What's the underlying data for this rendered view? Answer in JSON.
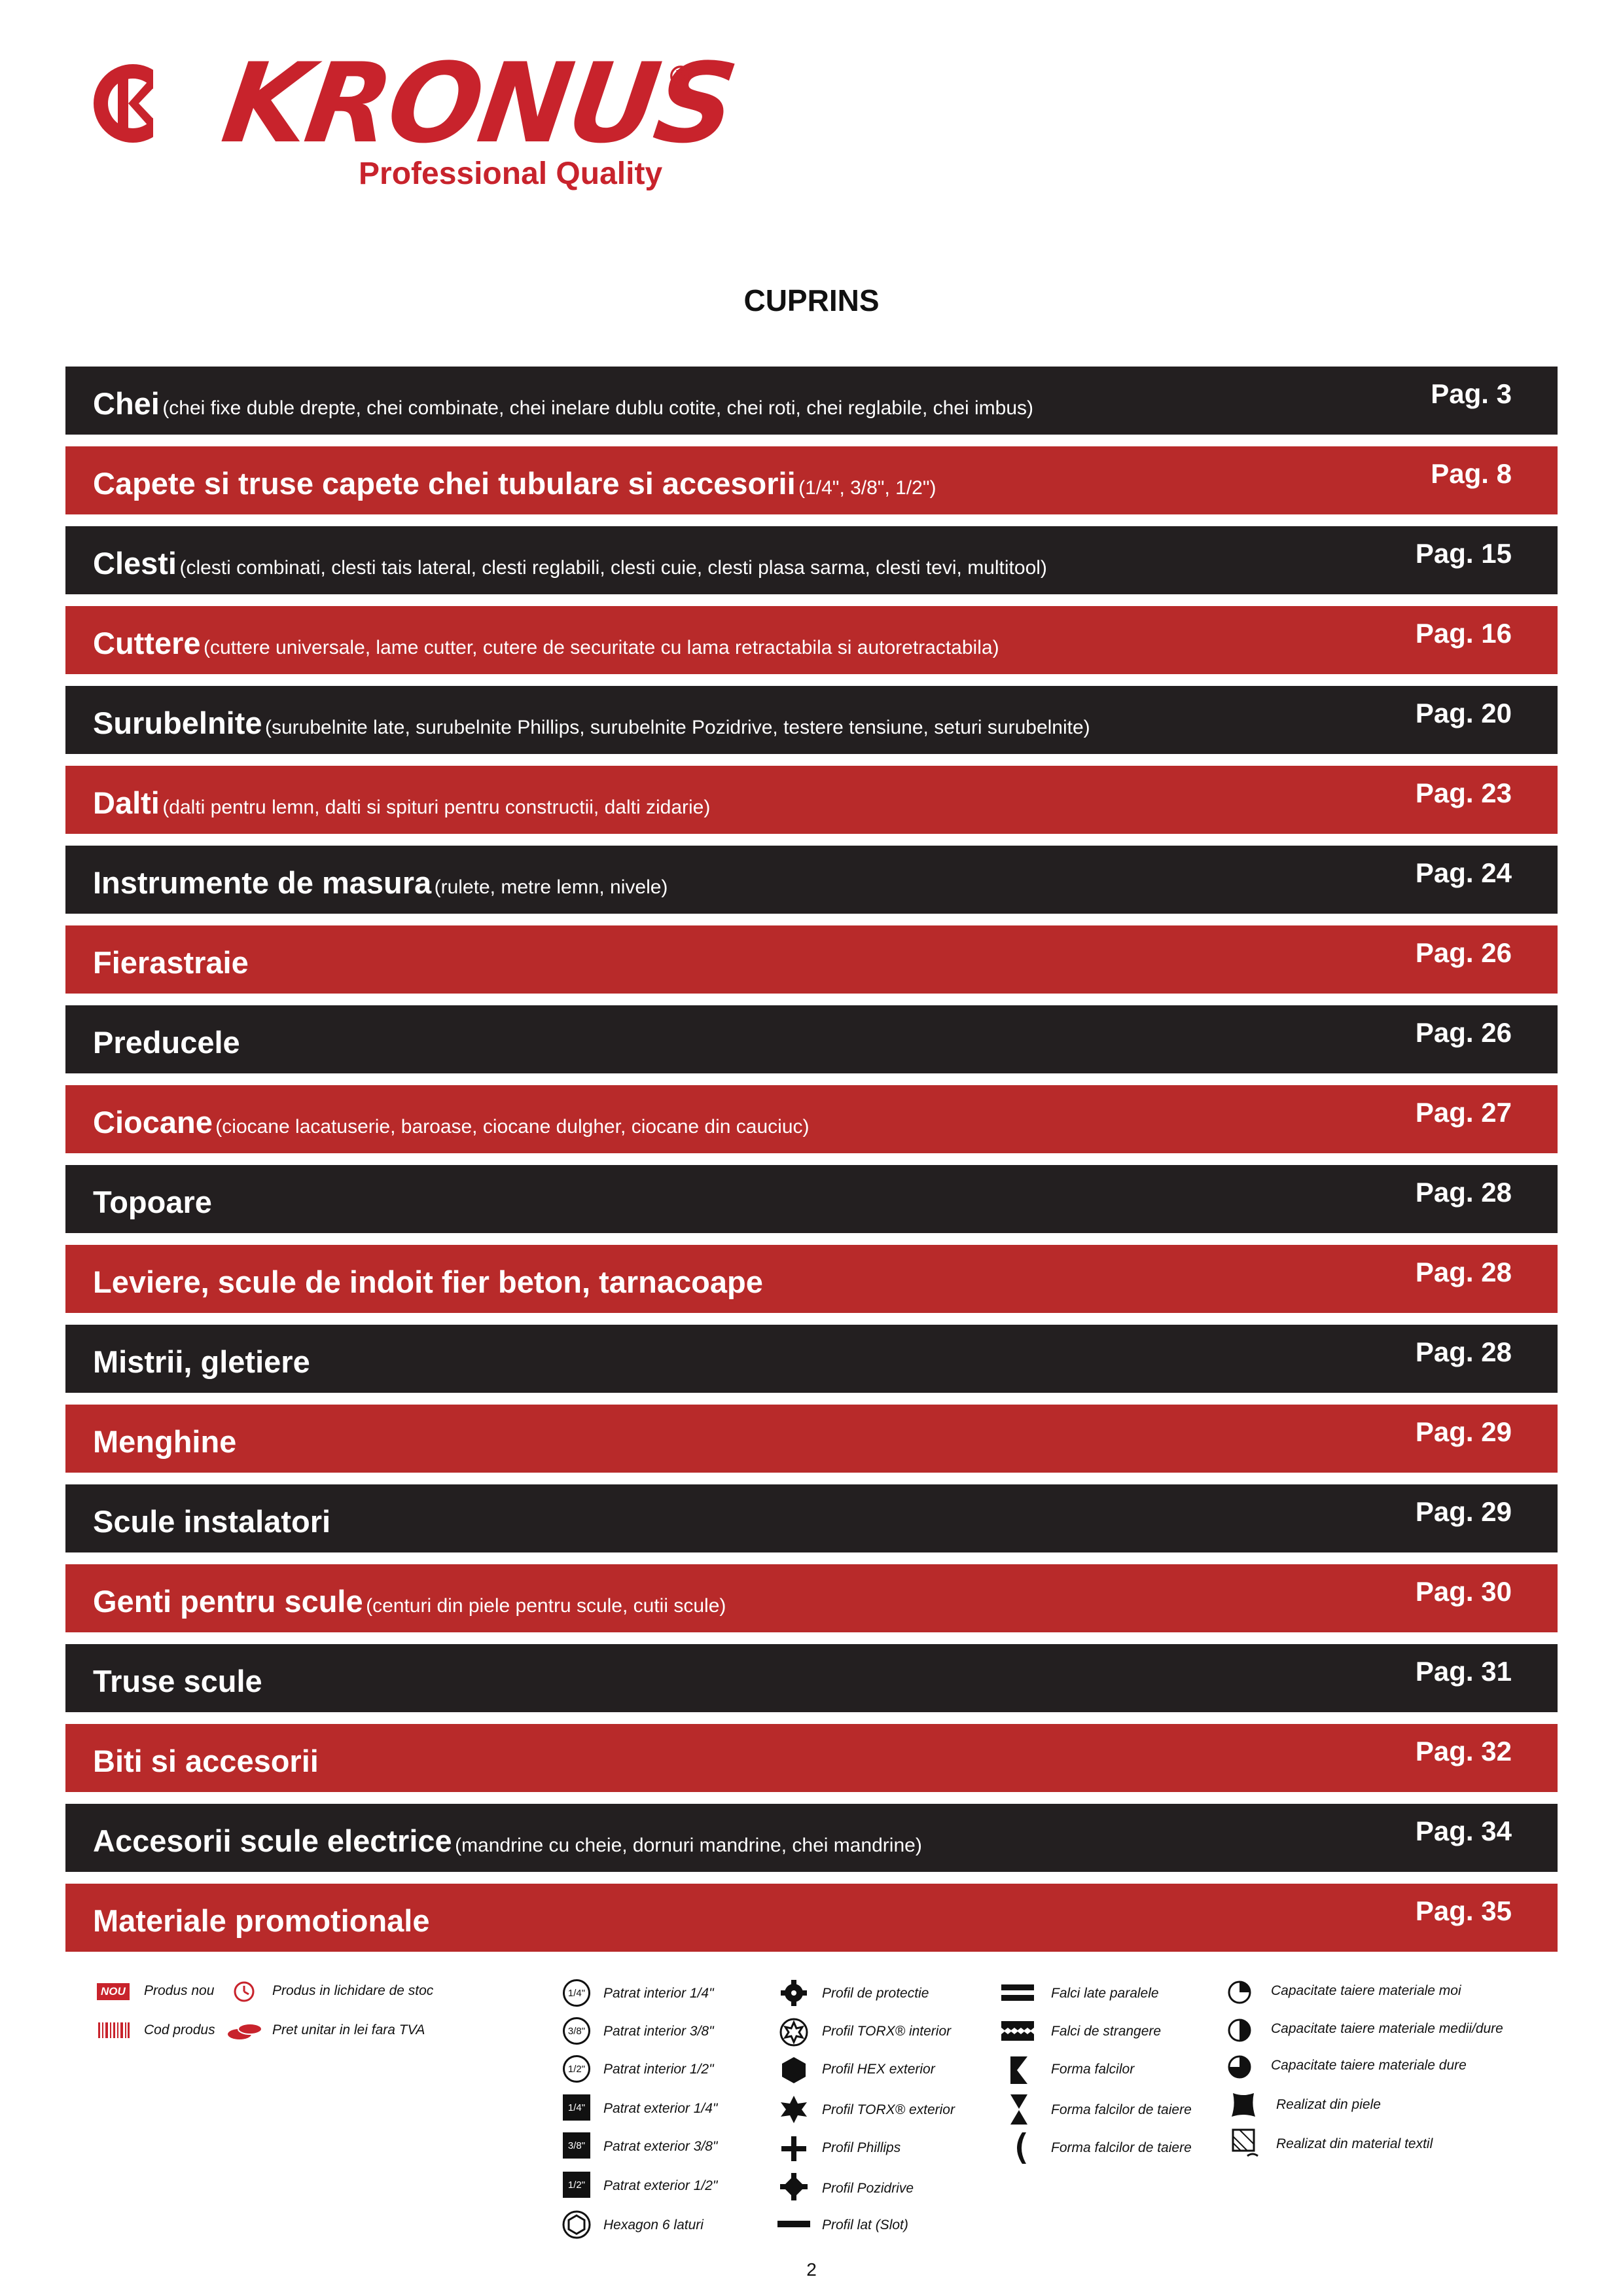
{
  "brand": {
    "name": "KRONUS",
    "registered": "®",
    "tagline": "Professional Quality",
    "color": "#c8232c"
  },
  "title": "CUPRINS",
  "toc": [
    {
      "main": "Chei",
      "sub": "(chei fixe duble drepte, chei combinate, chei inelare dublu cotite, chei roti, chei reglabile, chei imbus)",
      "page": "Pag. 3",
      "style": "dark"
    },
    {
      "main": "Capete si truse capete chei tubulare si accesorii",
      "sub": "(1/4\", 3/8\", 1/2\")",
      "page": "Pag. 8",
      "style": "red"
    },
    {
      "main": "Clesti",
      "sub": "(clesti combinati, clesti tais lateral, clesti reglabili, clesti cuie, clesti plasa sarma, clesti tevi, multitool)",
      "page": "Pag. 15",
      "style": "dark"
    },
    {
      "main": "Cuttere",
      "sub": "(cuttere universale, lame cutter, cutere de securitate cu lama retractabila si autoretractabila)",
      "page": "Pag. 16",
      "style": "red"
    },
    {
      "main": "Surubelnite",
      "sub": "(surubelnite late, surubelnite Phillips, surubelnite Pozidrive, testere tensiune, seturi surubelnite)",
      "page": "Pag. 20",
      "style": "dark"
    },
    {
      "main": "Dalti",
      "sub": "(dalti pentru lemn, dalti si spituri pentru constructii, dalti zidarie)",
      "page": "Pag. 23",
      "style": "red"
    },
    {
      "main": "Instrumente de masura",
      "sub": "(rulete, metre lemn, nivele)",
      "page": "Pag. 24",
      "style": "dark"
    },
    {
      "main": "Fierastraie",
      "sub": "",
      "page": "Pag. 26",
      "style": "red"
    },
    {
      "main": "Preducele",
      "sub": "",
      "page": "Pag. 26",
      "style": "dark"
    },
    {
      "main": "Ciocane",
      "sub": "(ciocane lacatuserie, baroase, ciocane dulgher, ciocane din cauciuc)",
      "page": "Pag. 27",
      "style": "red"
    },
    {
      "main": "Topoare",
      "sub": "",
      "page": "Pag. 28",
      "style": "dark"
    },
    {
      "main": "Leviere, scule de indoit fier beton, tarnacoape",
      "sub": "",
      "page": "Pag. 28",
      "style": "red"
    },
    {
      "main": "Mistrii, gletiere",
      "sub": "",
      "page": "Pag. 28",
      "style": "dark"
    },
    {
      "main": "Menghine",
      "sub": "",
      "page": "Pag. 29",
      "style": "red"
    },
    {
      "main": "Scule instalatori",
      "sub": "",
      "page": "Pag. 29",
      "style": "dark"
    },
    {
      "main": "Genti pentru scule",
      "sub": "(centuri din piele pentru scule, cutii scule)",
      "page": "Pag. 30",
      "style": "red"
    },
    {
      "main": "Truse scule",
      "sub": "",
      "page": "Pag. 31",
      "style": "dark"
    },
    {
      "main": "Biti si accesorii",
      "sub": "",
      "page": "Pag. 32",
      "style": "red"
    },
    {
      "main": "Accesorii scule electrice",
      "sub": "(mandrine cu cheie, dornuri mandrine, chei mandrine)",
      "page": "Pag. 34",
      "style": "dark"
    },
    {
      "main": "Materiale promotionale",
      "sub": "",
      "page": "Pag. 35",
      "style": "red"
    }
  ],
  "legend": {
    "nou_badge": "NOU",
    "col1": [
      "Produs nou",
      "Cod produs"
    ],
    "col2": [
      "Produs in lichidare de stoc",
      "Pret unitar in lei fara TVA"
    ],
    "squares_in": [
      "1/4\"",
      "3/8\"",
      "1/2\""
    ],
    "squares_out": [
      "1/4\"",
      "3/8\"",
      "1/2\""
    ],
    "col3": [
      "Patrat interior 1/4\"",
      "Patrat interior 3/8\"",
      "Patrat interior 1/2\"",
      "Patrat exterior 1/4\"",
      "Patrat exterior 3/8\"",
      "Patrat exterior 1/2\"",
      "Hexagon 6 laturi"
    ],
    "col4": [
      "Profil de protectie",
      "Profil TORX® interior",
      "Profil HEX exterior",
      "Profil TORX® exterior",
      "Profil Phillips",
      "Profil Pozidrive",
      "Profil lat (Slot)"
    ],
    "col5": [
      "Falci late paralele",
      "Falci de strangere",
      "Forma falcilor",
      "Forma falcilor de taiere",
      "Forma falcilor de taiere"
    ],
    "col6": [
      "Capacitate taiere materiale moi",
      "Capacitate taiere materiale medii/dure",
      "Capacitate taiere materiale dure",
      "Realizat din piele",
      "Realizat din material textil"
    ]
  },
  "page_number": "2"
}
